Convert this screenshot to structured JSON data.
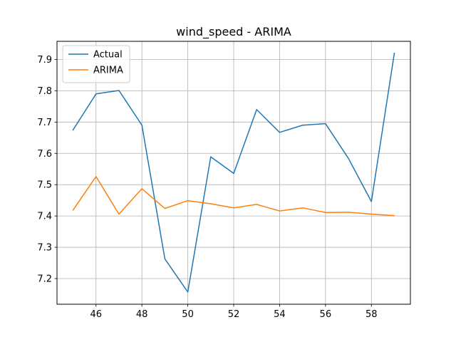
{
  "chart_data": {
    "type": "line",
    "title": "wind_speed - ARIMA",
    "xlabel": "",
    "ylabel": "",
    "x": [
      45,
      46,
      47,
      48,
      49,
      50,
      51,
      52,
      53,
      54,
      55,
      56,
      57,
      58,
      59
    ],
    "series": [
      {
        "name": "Actual",
        "color": "#1f77b4",
        "values": [
          7.675,
          7.79,
          7.801,
          7.69,
          7.263,
          7.157,
          7.589,
          7.536,
          7.74,
          7.667,
          7.69,
          7.695,
          7.584,
          7.446,
          7.92
        ]
      },
      {
        "name": "ARIMA",
        "color": "#ff7f0e",
        "values": [
          7.419,
          7.526,
          7.406,
          7.487,
          7.424,
          7.449,
          7.439,
          7.426,
          7.437,
          7.416,
          7.426,
          7.411,
          7.412,
          7.406,
          7.401
        ]
      }
    ],
    "xlim": [
      44.3,
      59.7
    ],
    "ylim": [
      7.118,
      7.958
    ],
    "xticks": [
      46,
      48,
      50,
      52,
      54,
      56,
      58
    ],
    "yticks": [
      7.2,
      7.3,
      7.4,
      7.5,
      7.6,
      7.7,
      7.8,
      7.9
    ],
    "xtick_labels": [
      "46",
      "48",
      "50",
      "52",
      "54",
      "56",
      "58"
    ],
    "ytick_labels": [
      "7.2",
      "7.3",
      "7.4",
      "7.5",
      "7.6",
      "7.7",
      "7.8",
      "7.9"
    ],
    "grid": true,
    "legend_position": "upper-left"
  }
}
